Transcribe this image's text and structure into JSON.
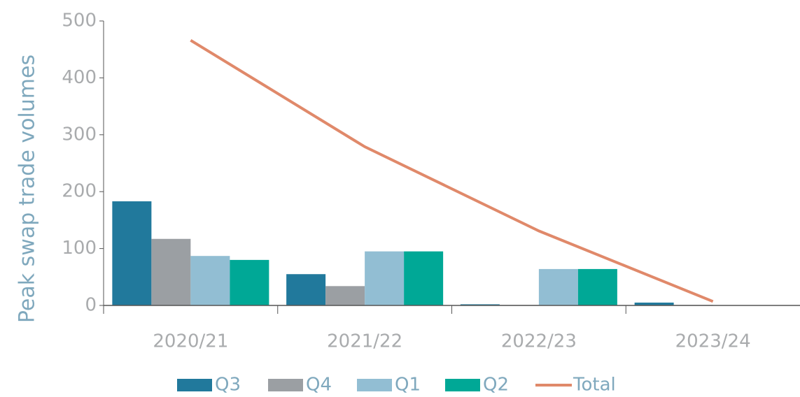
{
  "chart_data": {
    "type": "bar",
    "ylabel": "Peak swap trade volumes",
    "categories": [
      "2020/21",
      "2021/22",
      "2022/23",
      "2023/24"
    ],
    "series": [
      {
        "name": "Q3",
        "color": "#21799c",
        "values": [
          183,
          55,
          2,
          5
        ]
      },
      {
        "name": "Q4",
        "color": "#9b9fa3",
        "values": [
          117,
          34,
          1,
          1
        ]
      },
      {
        "name": "Q1",
        "color": "#92bed3",
        "values": [
          87,
          95,
          64,
          0
        ]
      },
      {
        "name": "Q2",
        "color": "#00a896",
        "values": [
          80,
          95,
          64,
          0
        ]
      },
      {
        "name": "Total",
        "color": "#e0896a",
        "type": "line",
        "values": [
          466,
          279,
          131,
          7
        ]
      }
    ],
    "ylim": [
      0,
      500
    ],
    "yticks": [
      0,
      100,
      200,
      300,
      400,
      500
    ],
    "grid": false
  }
}
